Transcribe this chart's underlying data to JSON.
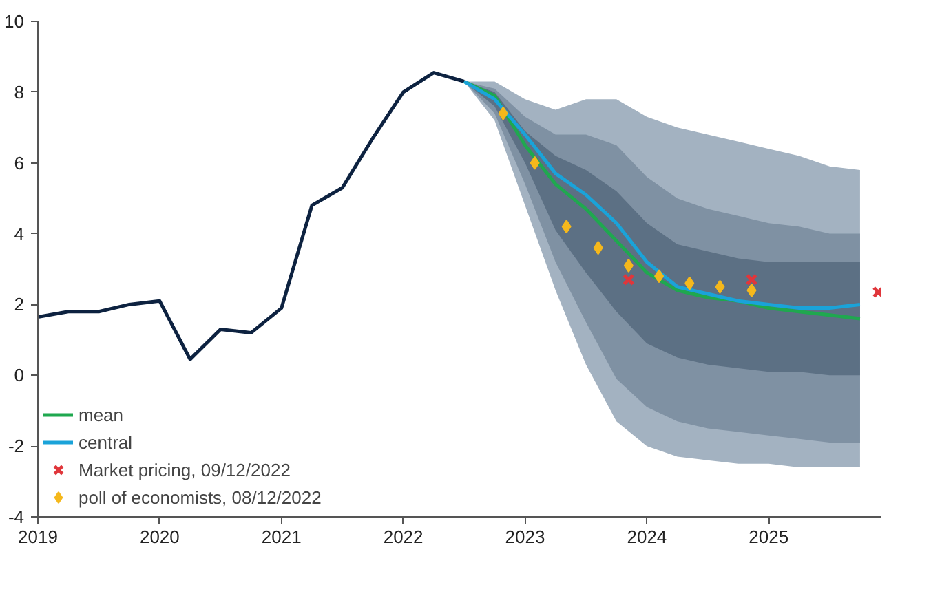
{
  "chart_data": {
    "type": "line",
    "xlim": [
      2019,
      2025.92
    ],
    "xticks": [
      2019,
      2020,
      2021,
      2022,
      2023,
      2024,
      2025
    ],
    "ylim": [
      -4,
      10
    ],
    "yticks": [
      -4,
      -2,
      0,
      2,
      4,
      6,
      8,
      10
    ],
    "grid": false,
    "legend": "bottom left",
    "marker": "none",
    "line_style": "solid",
    "series": [
      {
        "color": "#a3b2c1",
        "x": [
          2022.5,
          2022.75,
          2023,
          2023.25,
          2023.5,
          2023.75,
          2024,
          2024.25,
          2024.5,
          2024.75,
          2025,
          2025.25,
          2025.5,
          2025.75
        ],
        "values": [
          null,
          null,
          null,
          null,
          null,
          null,
          null,
          null,
          null,
          null,
          null,
          null,
          null,
          null
        ],
        "upper": [
          8.3,
          8.3,
          7.8,
          7.5,
          7.8,
          7.8,
          7.3,
          7.0,
          6.8,
          6.6,
          6.4,
          6.2,
          5.9,
          5.8
        ],
        "lower": [
          8.3,
          7.2,
          4.8,
          2.4,
          0.3,
          -1.3,
          -2.0,
          -2.3,
          -2.4,
          -2.5,
          -2.5,
          -2.6,
          -2.6,
          -2.6
        ]
      },
      {
        "color": "#7f91a3",
        "x": [
          2022.5,
          2022.75,
          2023,
          2023.25,
          2023.5,
          2023.75,
          2024,
          2024.25,
          2024.5,
          2024.75,
          2025,
          2025.25,
          2025.5,
          2025.75
        ],
        "values": [
          null,
          null,
          null,
          null,
          null,
          null,
          null,
          null,
          null,
          null,
          null,
          null,
          null,
          null
        ],
        "upper": [
          8.3,
          8.1,
          7.3,
          6.8,
          6.8,
          6.5,
          5.6,
          5.0,
          4.7,
          4.5,
          4.3,
          4.2,
          4.0,
          4.0
        ],
        "lower": [
          8.3,
          7.4,
          5.4,
          3.2,
          1.5,
          -0.1,
          -0.9,
          -1.3,
          -1.5,
          -1.6,
          -1.7,
          -1.8,
          -1.9,
          -1.9
        ]
      },
      {
        "color": "#5c7084",
        "x": [
          2022.5,
          2022.75,
          2023,
          2023.25,
          2023.5,
          2023.75,
          2024,
          2024.25,
          2024.5,
          2024.75,
          2025,
          2025.25,
          2025.5,
          2025.75
        ],
        "values": [
          null,
          null,
          null,
          null,
          null,
          null,
          null,
          null,
          null,
          null,
          null,
          null,
          null,
          null
        ],
        "upper": [
          8.3,
          8.0,
          6.9,
          6.2,
          5.8,
          5.2,
          4.3,
          3.7,
          3.5,
          3.3,
          3.2,
          3.2,
          3.2,
          3.2
        ],
        "lower": [
          8.3,
          7.6,
          6.0,
          4.1,
          2.9,
          1.8,
          0.9,
          0.5,
          0.3,
          0.2,
          0.1,
          0.1,
          0.0,
          0.0
        ]
      },
      {
        "color": "#0d2240",
        "x": [
          2019,
          2019.25,
          2019.5,
          2019.75,
          2020,
          2020.25,
          2020.5,
          2020.75,
          2021,
          2021.25,
          2021.5,
          2021.75,
          2022,
          2022.25,
          2022.5
        ],
        "values": [
          1.65,
          1.8,
          1.8,
          2.0,
          2.1,
          0.45,
          1.3,
          1.2,
          1.9,
          4.8,
          5.3,
          6.7,
          8.0,
          8.55,
          8.3
        ]
      },
      {
        "name": "mean",
        "color": "#1fa84f",
        "x": [
          2022.5,
          2022.75,
          2023,
          2023.25,
          2023.5,
          2023.75,
          2024,
          2024.25,
          2024.5,
          2024.75,
          2025,
          2025.25,
          2025.5,
          2025.75
        ],
        "values": [
          8.3,
          7.9,
          6.5,
          5.4,
          4.7,
          3.8,
          2.9,
          2.4,
          2.2,
          2.1,
          1.9,
          1.8,
          1.7,
          1.6
        ]
      },
      {
        "name": "central",
        "color": "#1aa3d9",
        "x": [
          2022.5,
          2022.75,
          2023,
          2023.25,
          2023.5,
          2023.75,
          2024,
          2024.25,
          2024.5,
          2024.75,
          2025,
          2025.25,
          2025.5,
          2025.75
        ],
        "values": [
          8.3,
          7.8,
          6.8,
          5.7,
          5.1,
          4.3,
          3.2,
          2.5,
          2.3,
          2.1,
          2.0,
          1.9,
          1.9,
          2.0
        ]
      },
      {
        "type": "scatter",
        "name": "Market pricing, 09/12/2022",
        "color": "#e0363b",
        "marker": "cross",
        "x": [
          2023.85,
          2024.86,
          2025.9
        ],
        "values": [
          2.7,
          2.7,
          2.35
        ]
      },
      {
        "type": "scatter",
        "name": "poll of economists, 08/12/2022",
        "color": "#f5b81c",
        "marker": "diamond",
        "x": [
          2022.82,
          2023.08,
          2023.34,
          2023.6,
          2023.85,
          2024.1,
          2024.35,
          2024.6,
          2024.86
        ],
        "values": [
          7.4,
          6.0,
          4.2,
          3.6,
          3.1,
          2.8,
          2.6,
          2.5,
          2.4
        ]
      }
    ]
  }
}
